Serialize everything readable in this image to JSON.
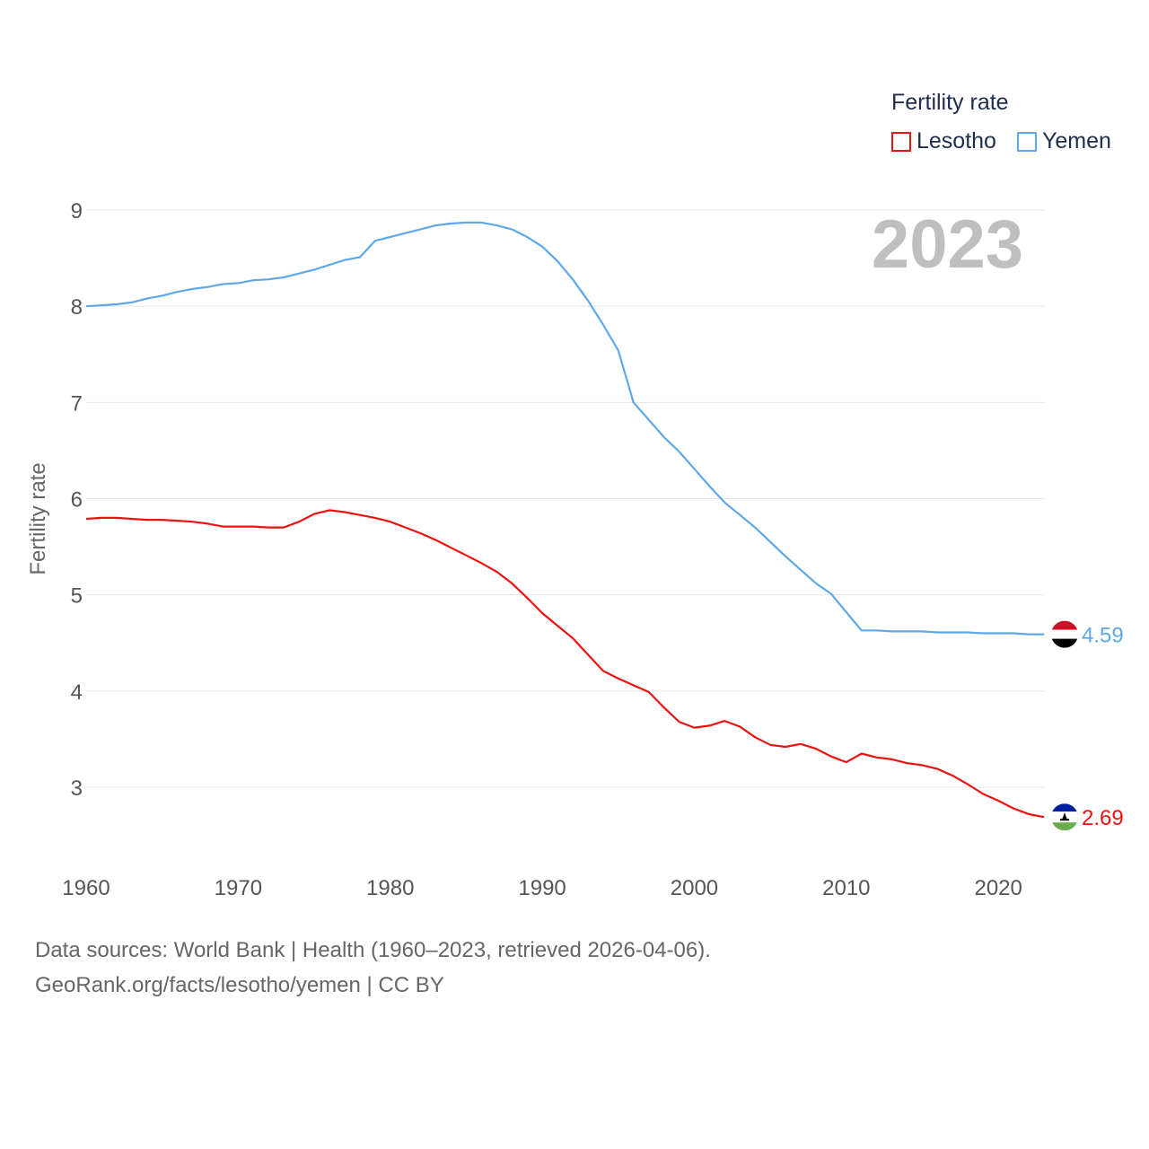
{
  "legend": {
    "title": "Fertility rate",
    "items": [
      {
        "label": "Lesotho",
        "color": "#ee1111"
      },
      {
        "label": "Yemen",
        "color": "#5fa8e8"
      }
    ]
  },
  "year_label": "2023",
  "source": {
    "line1": "Data sources: World Bank | Health (1960–2023, retrieved 2026-04-06).",
    "line2": "GeoRank.org/facts/lesotho/yemen | CC BY"
  },
  "chart_data": {
    "type": "line",
    "title": "",
    "xlabel": "",
    "ylabel": "Fertility rate",
    "xlim": [
      1960,
      2023
    ],
    "ylim": [
      2.3,
      9.3
    ],
    "x_ticks": [
      1960,
      1970,
      1980,
      1990,
      2000,
      2010,
      2020
    ],
    "y_ticks": [
      3,
      4,
      5,
      6,
      7,
      8,
      9
    ],
    "grid": true,
    "x": [
      1960,
      1961,
      1962,
      1963,
      1964,
      1965,
      1966,
      1967,
      1968,
      1969,
      1970,
      1971,
      1972,
      1973,
      1974,
      1975,
      1976,
      1977,
      1978,
      1979,
      1980,
      1981,
      1982,
      1983,
      1984,
      1985,
      1986,
      1987,
      1988,
      1989,
      1990,
      1991,
      1992,
      1993,
      1994,
      1995,
      1996,
      1997,
      1998,
      1999,
      2000,
      2001,
      2002,
      2003,
      2004,
      2005,
      2006,
      2007,
      2008,
      2009,
      2010,
      2011,
      2012,
      2013,
      2014,
      2015,
      2016,
      2017,
      2018,
      2019,
      2020,
      2021,
      2022,
      2023
    ],
    "series": [
      {
        "name": "Lesotho",
        "color": "#ee1111",
        "end_label": "2.69",
        "values": [
          5.79,
          5.8,
          5.8,
          5.79,
          5.78,
          5.78,
          5.77,
          5.76,
          5.74,
          5.71,
          5.71,
          5.71,
          5.7,
          5.7,
          5.76,
          5.84,
          5.88,
          5.86,
          5.83,
          5.8,
          5.76,
          5.7,
          5.64,
          5.57,
          5.49,
          5.41,
          5.33,
          5.24,
          5.12,
          4.97,
          4.81,
          4.68,
          4.55,
          4.38,
          4.21,
          4.13,
          4.06,
          3.99,
          3.83,
          3.68,
          3.62,
          3.64,
          3.69,
          3.63,
          3.52,
          3.44,
          3.42,
          3.45,
          3.4,
          3.32,
          3.26,
          3.35,
          3.31,
          3.29,
          3.25,
          3.23,
          3.19,
          3.12,
          3.03,
          2.93,
          2.86,
          2.78,
          2.72,
          2.69
        ]
      },
      {
        "name": "Yemen",
        "color": "#5fa8e8",
        "end_label": "4.59",
        "values": [
          8.0,
          8.01,
          8.02,
          8.04,
          8.08,
          8.11,
          8.15,
          8.18,
          8.2,
          8.23,
          8.24,
          8.27,
          8.28,
          8.3,
          8.34,
          8.38,
          8.43,
          8.48,
          8.51,
          8.68,
          8.72,
          8.76,
          8.8,
          8.84,
          8.86,
          8.87,
          8.87,
          8.84,
          8.8,
          8.72,
          8.62,
          8.47,
          8.28,
          8.06,
          7.81,
          7.54,
          7.0,
          6.82,
          6.64,
          6.49,
          6.31,
          6.13,
          5.96,
          5.83,
          5.7,
          5.55,
          5.4,
          5.26,
          5.12,
          5.01,
          4.82,
          4.63,
          4.63,
          4.62,
          4.62,
          4.62,
          4.61,
          4.61,
          4.61,
          4.6,
          4.6,
          4.6,
          4.59,
          4.59
        ]
      }
    ]
  }
}
